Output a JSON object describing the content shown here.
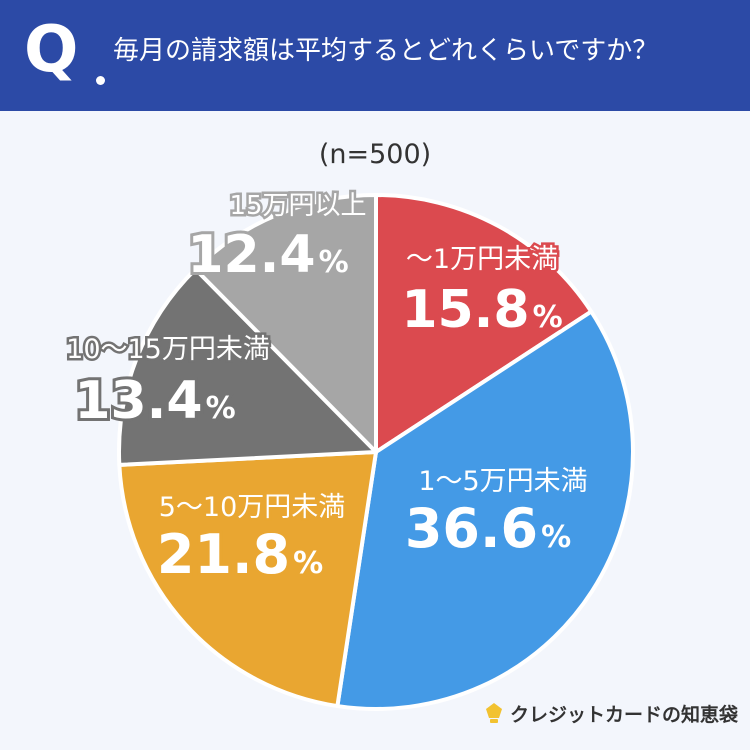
{
  "header": {
    "q_mark": "Q",
    "question": "毎月の請求額は平均するとどれくらいですか？"
  },
  "sample_label": "(n=500)",
  "brand": {
    "name": "クレジットカードの知恵袋",
    "icon": "lightbulb-icon"
  },
  "colors": {
    "header_bg": "#2c4aa6",
    "page_bg": "#f3f6fc",
    "slice_under_1": "#db4a4f",
    "slice_1_5": "#449ae6",
    "slice_5_10": "#e9a631",
    "slice_10_15": "#737373",
    "slice_15_plus": "#a6a6a6"
  },
  "chart_data": {
    "type": "pie",
    "unit": "%",
    "slices": [
      {
        "label": "〜1万円未満",
        "value": 15.8,
        "value_text": "15.8",
        "color": "#db4a4f"
      },
      {
        "label": "1〜5万円未満",
        "value": 36.6,
        "value_text": "36.6",
        "color": "#449ae6"
      },
      {
        "label": "5〜10万円未満",
        "value": 21.8,
        "value_text": "21.8",
        "color": "#e9a631"
      },
      {
        "label": "10〜15万円未満",
        "value": 13.4,
        "value_text": "13.4",
        "color": "#737373"
      },
      {
        "label": "15万円以上",
        "value": 12.4,
        "value_text": "12.4",
        "color": "#a6a6a6"
      }
    ]
  }
}
